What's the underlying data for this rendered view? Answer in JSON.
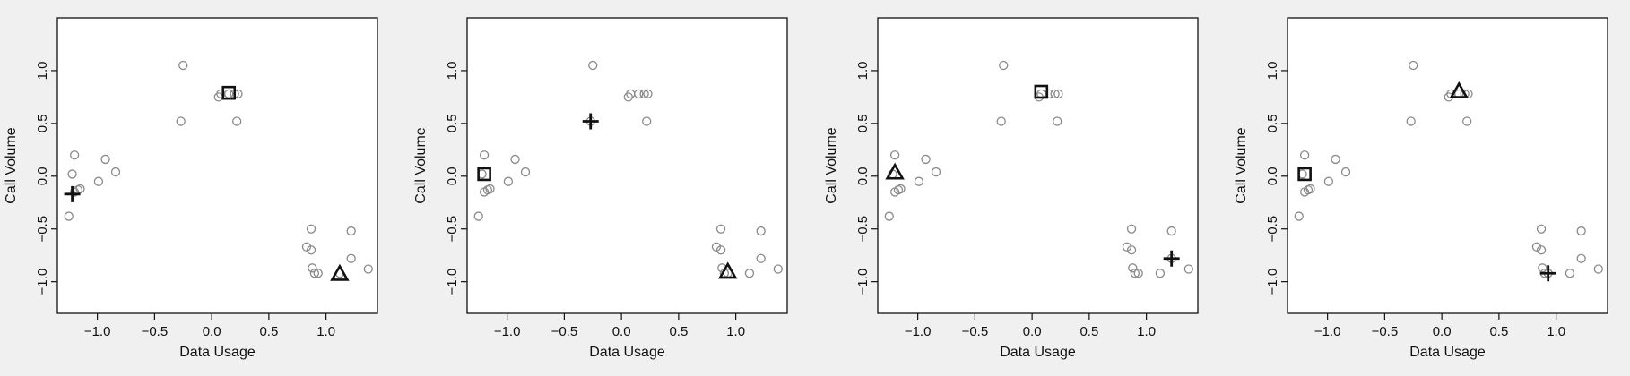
{
  "chart_data": [
    {
      "type": "scatter",
      "xlabel": "Data Usage",
      "ylabel": "Call Volume",
      "xlim": [
        -1.35,
        1.45
      ],
      "ylim": [
        -1.3,
        1.5
      ],
      "xticks": [
        "−1.0",
        "−0.5",
        "0.0",
        "0.5",
        "1.0"
      ],
      "xtick_values": [
        -1.0,
        -0.5,
        0.0,
        0.5,
        1.0
      ],
      "yticks": [
        "−1.0",
        "−0.5",
        "0.0",
        "0.5",
        "1.0"
      ],
      "ytick_values": [
        -1.0,
        -0.5,
        0.0,
        0.5,
        1.0
      ],
      "points": {
        "x": [
          -1.25,
          -1.2,
          -1.22,
          -1.2,
          -1.17,
          -1.15,
          -0.99,
          -0.93,
          -0.84,
          -0.25,
          -0.27,
          0.06,
          0.08,
          0.15,
          0.2,
          0.23,
          0.22,
          0.83,
          0.87,
          0.87,
          0.88,
          0.9,
          0.93,
          1.12,
          1.22,
          1.22,
          1.37
        ],
        "y": [
          -0.38,
          0.2,
          0.02,
          -0.15,
          -0.13,
          -0.12,
          -0.05,
          0.16,
          0.04,
          1.05,
          0.52,
          0.75,
          0.78,
          0.78,
          0.78,
          0.78,
          0.52,
          -0.67,
          -0.5,
          -0.7,
          -0.87,
          -0.92,
          -0.92,
          -0.92,
          -0.52,
          -0.78,
          -0.88
        ]
      },
      "centroids": [
        {
          "marker": "square",
          "x": 0.15,
          "y": 0.79
        },
        {
          "marker": "plus",
          "x": -1.22,
          "y": -0.17
        },
        {
          "marker": "triangle",
          "x": 1.12,
          "y": -0.93
        }
      ]
    },
    {
      "type": "scatter",
      "xlabel": "Data Usage",
      "ylabel": "Call Volume",
      "xlim": [
        -1.35,
        1.45
      ],
      "ylim": [
        -1.3,
        1.5
      ],
      "xticks": [
        "−1.0",
        "−0.5",
        "0.0",
        "0.5",
        "1.0"
      ],
      "xtick_values": [
        -1.0,
        -0.5,
        0.0,
        0.5,
        1.0
      ],
      "yticks": [
        "−1.0",
        "−0.5",
        "0.0",
        "0.5",
        "1.0"
      ],
      "ytick_values": [
        -1.0,
        -0.5,
        0.0,
        0.5,
        1.0
      ],
      "points": {
        "x": [
          -1.25,
          -1.2,
          -1.22,
          -1.2,
          -1.17,
          -1.15,
          -0.99,
          -0.93,
          -0.84,
          -0.25,
          -0.27,
          0.06,
          0.08,
          0.15,
          0.2,
          0.23,
          0.22,
          0.83,
          0.87,
          0.87,
          0.88,
          0.9,
          0.93,
          1.12,
          1.22,
          1.22,
          1.37
        ],
        "y": [
          -0.38,
          0.2,
          0.02,
          -0.15,
          -0.13,
          -0.12,
          -0.05,
          0.16,
          0.04,
          1.05,
          0.52,
          0.75,
          0.78,
          0.78,
          0.78,
          0.78,
          0.52,
          -0.67,
          -0.5,
          -0.7,
          -0.87,
          -0.92,
          -0.92,
          -0.92,
          -0.52,
          -0.78,
          -0.88
        ]
      },
      "centroids": [
        {
          "marker": "square",
          "x": -1.2,
          "y": 0.02
        },
        {
          "marker": "plus",
          "x": -0.27,
          "y": 0.52
        },
        {
          "marker": "triangle",
          "x": 0.93,
          "y": -0.91
        }
      ]
    },
    {
      "type": "scatter",
      "xlabel": "Data Usage",
      "ylabel": "Call Volume",
      "xlim": [
        -1.35,
        1.45
      ],
      "ylim": [
        -1.3,
        1.5
      ],
      "xticks": [
        "−1.0",
        "−0.5",
        "0.0",
        "0.5",
        "1.0"
      ],
      "xtick_values": [
        -1.0,
        -0.5,
        0.0,
        0.5,
        1.0
      ],
      "yticks": [
        "−1.0",
        "−0.5",
        "0.0",
        "0.5",
        "1.0"
      ],
      "ytick_values": [
        -1.0,
        -0.5,
        0.0,
        0.5,
        1.0
      ],
      "points": {
        "x": [
          -1.25,
          -1.2,
          -1.22,
          -1.2,
          -1.17,
          -1.15,
          -0.99,
          -0.93,
          -0.84,
          -0.25,
          -0.27,
          0.06,
          0.08,
          0.15,
          0.2,
          0.23,
          0.22,
          0.83,
          0.87,
          0.87,
          0.88,
          0.9,
          0.93,
          1.12,
          1.22,
          1.22,
          1.37
        ],
        "y": [
          -0.38,
          0.2,
          0.02,
          -0.15,
          -0.13,
          -0.12,
          -0.05,
          0.16,
          0.04,
          1.05,
          0.52,
          0.75,
          0.78,
          0.78,
          0.78,
          0.78,
          0.52,
          -0.67,
          -0.5,
          -0.7,
          -0.87,
          -0.92,
          -0.92,
          -0.92,
          -0.52,
          -0.78,
          -0.88
        ]
      },
      "centroids": [
        {
          "marker": "square",
          "x": 0.08,
          "y": 0.8
        },
        {
          "marker": "triangle",
          "x": -1.2,
          "y": 0.03
        },
        {
          "marker": "plus",
          "x": 1.22,
          "y": -0.78
        }
      ]
    },
    {
      "type": "scatter",
      "xlabel": "Data Usage",
      "ylabel": "Call Volume",
      "xlim": [
        -1.35,
        1.45
      ],
      "ylim": [
        -1.3,
        1.5
      ],
      "xticks": [
        "−1.0",
        "−0.5",
        "0.0",
        "0.5",
        "1.0"
      ],
      "xtick_values": [
        -1.0,
        -0.5,
        0.0,
        0.5,
        1.0
      ],
      "yticks": [
        "−1.0",
        "−0.5",
        "0.0",
        "0.5",
        "1.0"
      ],
      "ytick_values": [
        -1.0,
        -0.5,
        0.0,
        0.5,
        1.0
      ],
      "points": {
        "x": [
          -1.25,
          -1.2,
          -1.22,
          -1.2,
          -1.17,
          -1.15,
          -0.99,
          -0.93,
          -0.84,
          -0.25,
          -0.27,
          0.06,
          0.08,
          0.15,
          0.2,
          0.23,
          0.22,
          0.83,
          0.87,
          0.87,
          0.88,
          0.9,
          0.93,
          1.12,
          1.22,
          1.22,
          1.37
        ],
        "y": [
          -0.38,
          0.2,
          0.02,
          -0.15,
          -0.13,
          -0.12,
          -0.05,
          0.16,
          0.04,
          1.05,
          0.52,
          0.75,
          0.78,
          0.78,
          0.78,
          0.78,
          0.52,
          -0.67,
          -0.5,
          -0.7,
          -0.87,
          -0.92,
          -0.92,
          -0.92,
          -0.52,
          -0.78,
          -0.88
        ]
      },
      "centroids": [
        {
          "marker": "square",
          "x": -1.2,
          "y": 0.02
        },
        {
          "marker": "triangle",
          "x": 0.15,
          "y": 0.8
        },
        {
          "marker": "plus",
          "x": 0.93,
          "y": -0.92
        }
      ]
    }
  ]
}
